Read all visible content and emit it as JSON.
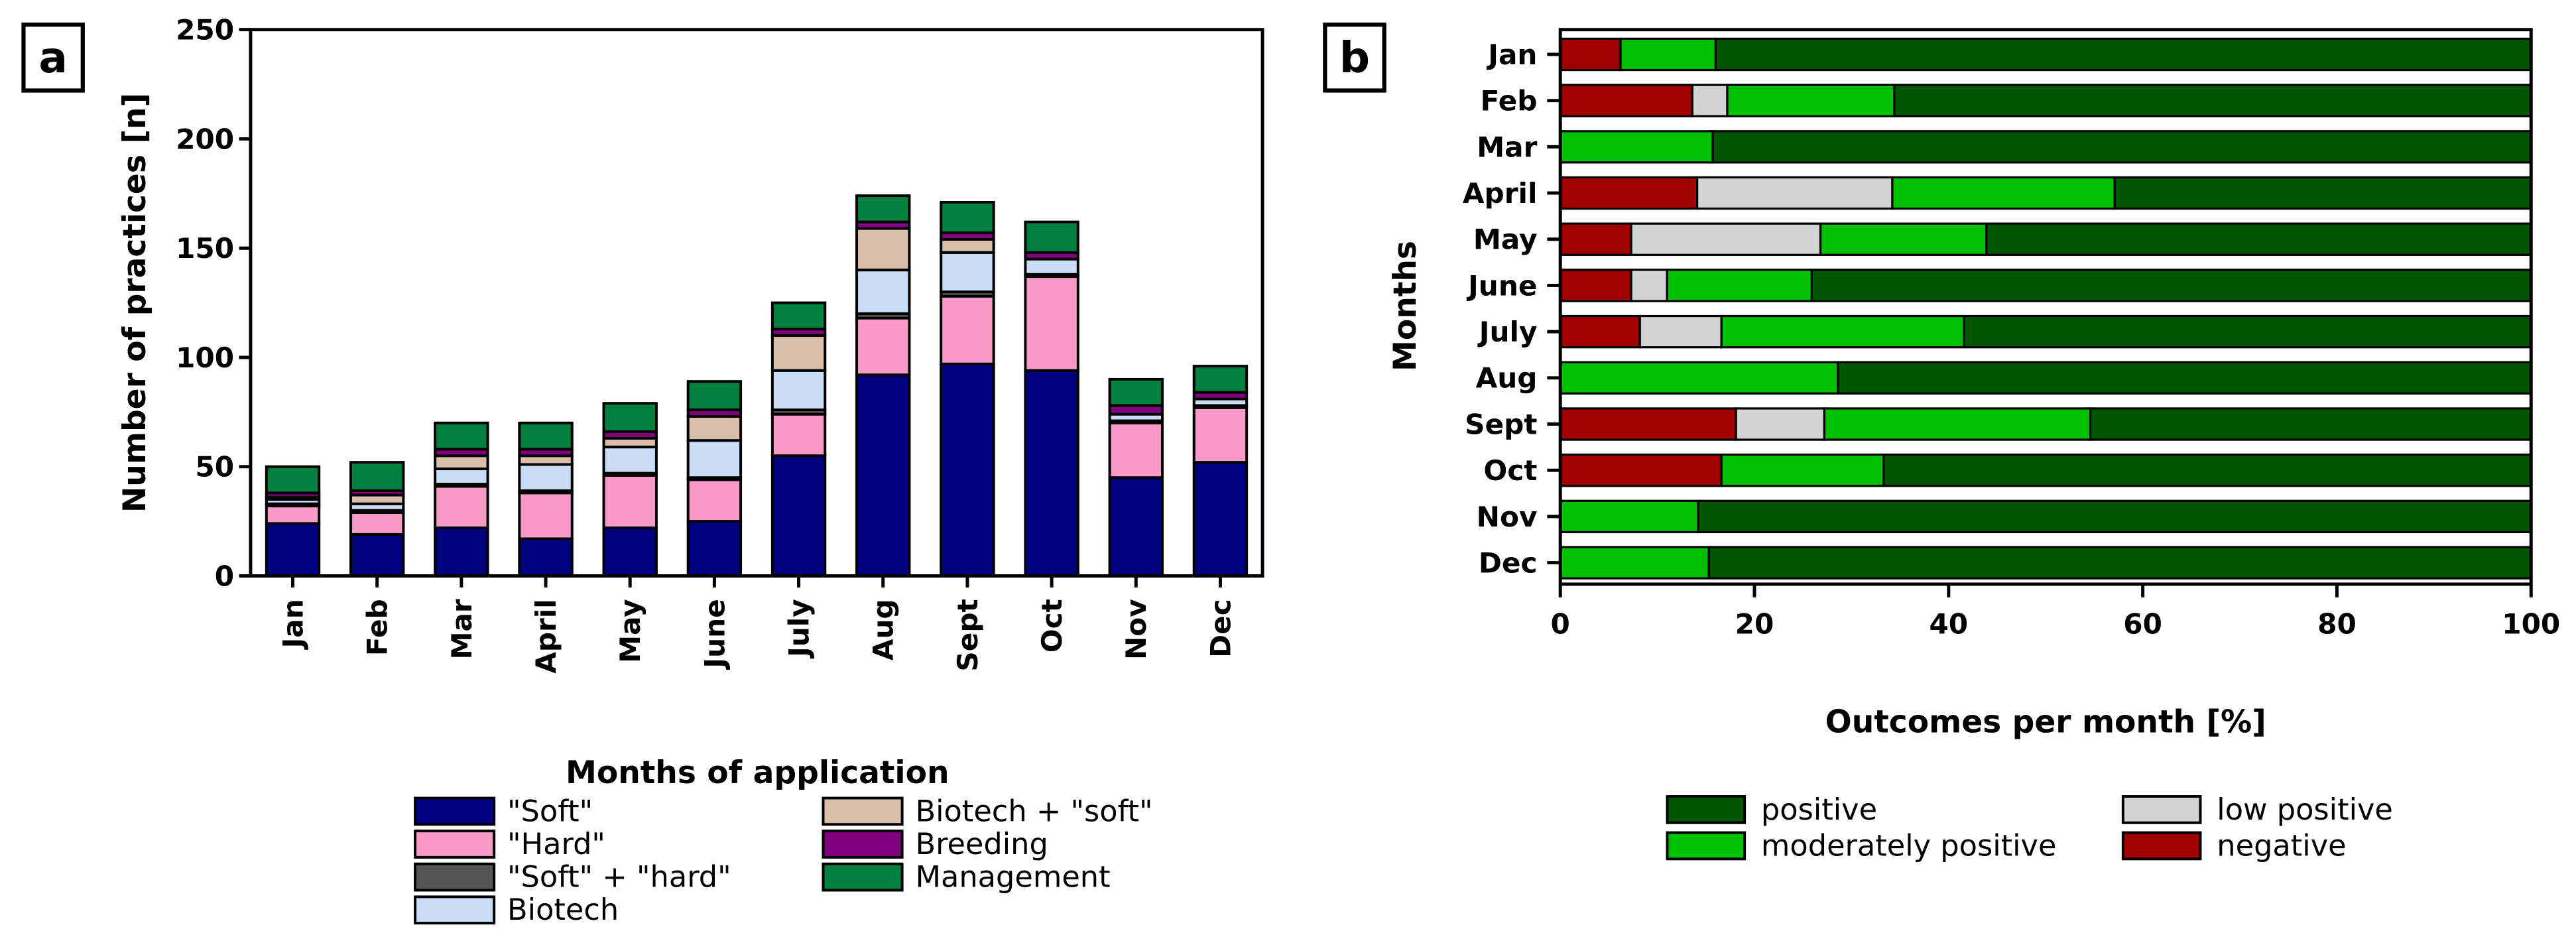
{
  "chart_data": [
    {
      "panel": "a",
      "type": "bar",
      "stacked": true,
      "categories": [
        "Jan",
        "Feb",
        "Mar",
        "April",
        "May",
        "June",
        "July",
        "Aug",
        "Sept",
        "Oct",
        "Nov",
        "Dec"
      ],
      "xlabel": "Months of application",
      "ylabel": "Number of practices [n]",
      "ylim": [
        0,
        250
      ],
      "yticks": [
        "0",
        "50",
        "100",
        "150",
        "200",
        "250"
      ],
      "grid": false,
      "legend_placement": "bottom",
      "series": [
        {
          "name": "\"Soft\"",
          "color": "#000080",
          "values": [
            24,
            19,
            22,
            17,
            22,
            25,
            55,
            92,
            97,
            94,
            45,
            52
          ]
        },
        {
          "name": "\"Hard\"",
          "color": "#f99ac8",
          "values": [
            8,
            10,
            19,
            21,
            24,
            19,
            19,
            26,
            31,
            43,
            25,
            25
          ]
        },
        {
          "name": "\"Soft\" + \"hard\"",
          "color": "#555555",
          "values": [
            1,
            1,
            1,
            1,
            1,
            1,
            2,
            2,
            2,
            1,
            1,
            1
          ]
        },
        {
          "name": "Biotech",
          "color": "#c9ddf7",
          "values": [
            2,
            3,
            7,
            12,
            12,
            17,
            18,
            20,
            18,
            7,
            3,
            3
          ]
        },
        {
          "name": "Biotech + \"soft\"",
          "color": "#d9bfa9",
          "values": [
            1,
            4,
            6,
            4,
            4,
            11,
            16,
            19,
            6,
            0,
            0,
            0
          ]
        },
        {
          "name": "Breeding",
          "color": "#800080",
          "values": [
            2,
            2,
            3,
            3,
            3,
            3,
            3,
            3,
            3,
            3,
            4,
            3
          ]
        },
        {
          "name": "Management",
          "color": "#00803f",
          "values": [
            12,
            13,
            12,
            12,
            13,
            13,
            12,
            12,
            14,
            14,
            12,
            12
          ]
        }
      ]
    },
    {
      "panel": "b",
      "type": "bar",
      "orientation": "horizontal",
      "stacked": true,
      "categories": [
        "Jan",
        "Feb",
        "Mar",
        "April",
        "May",
        "June",
        "July",
        "Aug",
        "Sept",
        "Oct",
        "Nov",
        "Dec"
      ],
      "xlabel": "Outcomes per month [%]",
      "ylabel": "Months",
      "xlim": [
        0,
        100
      ],
      "xticks": [
        "0",
        "20",
        "40",
        "60",
        "80",
        "100"
      ],
      "grid": false,
      "legend_placement": "bottom",
      "series": [
        {
          "name": "negative",
          "color": "#a00000",
          "values": [
            6.2,
            13.6,
            0,
            14.1,
            7.3,
            7.3,
            8.2,
            0,
            18.1,
            16.6,
            0,
            0
          ]
        },
        {
          "name": "low positive",
          "color": "#d3d3d3",
          "values": [
            0,
            3.6,
            0,
            20.1,
            19.5,
            3.7,
            8.4,
            0,
            9.1,
            0,
            0,
            0
          ]
        },
        {
          "name": "moderately positive",
          "color": "#00c000",
          "values": [
            9.8,
            17.2,
            15.7,
            22.9,
            17.1,
            14.9,
            25.0,
            28.6,
            27.4,
            16.7,
            14.2,
            15.3
          ]
        },
        {
          "name": "positive",
          "color": "#005500",
          "values": [
            84.0,
            65.6,
            84.3,
            42.9,
            56.1,
            74.1,
            58.4,
            71.4,
            45.4,
            66.7,
            85.8,
            84.7
          ]
        }
      ]
    }
  ]
}
